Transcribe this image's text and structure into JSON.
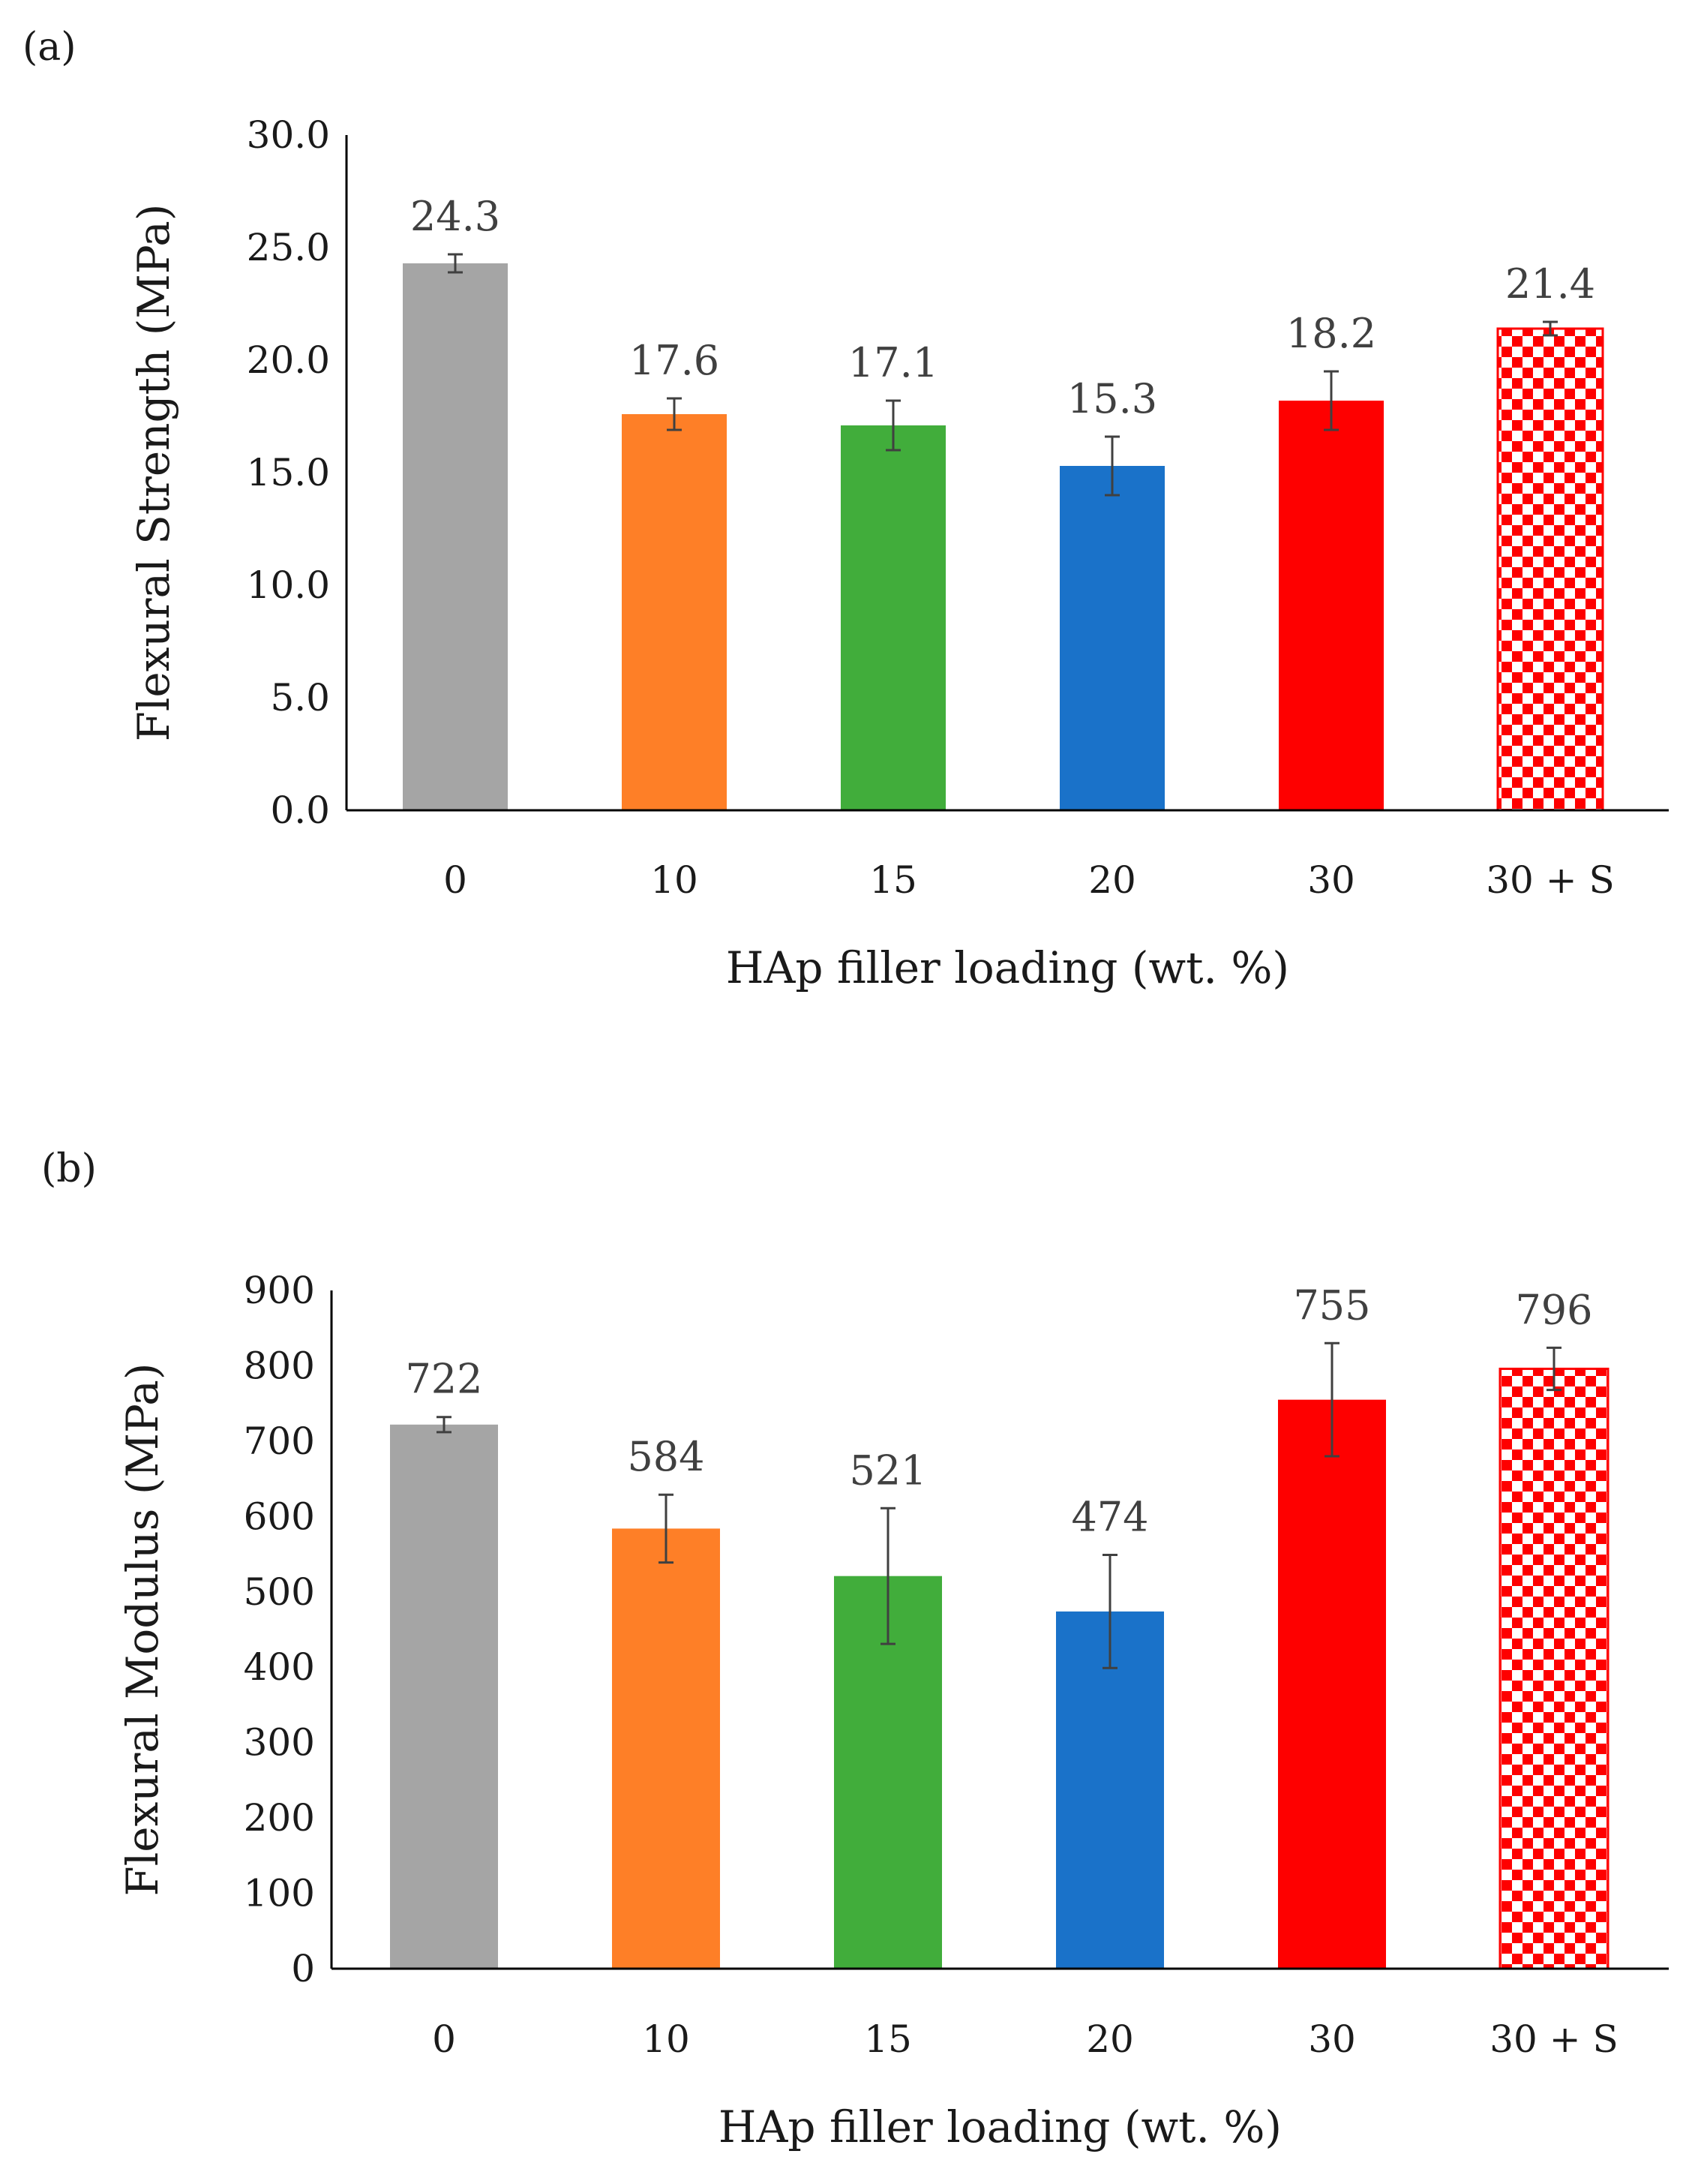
{
  "panels": [
    {
      "label": "(a)",
      "chart_data": {
        "type": "bar",
        "categories": [
          "0",
          "10",
          "15",
          "20",
          "30",
          "30 + S"
        ],
        "values": [
          24.3,
          17.6,
          17.1,
          15.3,
          18.2,
          21.4
        ],
        "value_labels": [
          "24.3",
          "17.6",
          "17.1",
          "15.3",
          "18.2",
          "21.4"
        ],
        "error": [
          0.4,
          0.7,
          1.1,
          1.3,
          1.3,
          0.3
        ],
        "colors": [
          "#a5a5a5",
          "#fe7f27",
          "#41ad3b",
          "#1a72c9",
          "#fe0000",
          "checker"
        ],
        "ylabel": "Flexural Strength (MPa)",
        "xlabel": "HAp filler loading (wt. %)",
        "ylim": [
          0,
          30
        ],
        "yticks": [
          0,
          5,
          10,
          15,
          20,
          25,
          30
        ],
        "ytick_labels": [
          "0.0",
          "5.0",
          "10.0",
          "15.0",
          "20.0",
          "25.0",
          "30.0"
        ],
        "grid": false,
        "legend": "none"
      }
    },
    {
      "label": "(b)",
      "chart_data": {
        "type": "bar",
        "categories": [
          "0",
          "10",
          "15",
          "20",
          "30",
          "30 + S"
        ],
        "values": [
          722,
          584,
          521,
          474,
          755,
          796
        ],
        "value_labels": [
          "722",
          "584",
          "521",
          "474",
          "755",
          "796"
        ],
        "error": [
          10,
          45,
          90,
          75,
          75,
          28
        ],
        "colors": [
          "#a5a5a5",
          "#fe7f27",
          "#41ad3b",
          "#1a72c9",
          "#fe0000",
          "checker"
        ],
        "ylabel": "Flexural Modulus (MPa)",
        "xlabel": "HAp filler loading (wt. %)",
        "ylim": [
          0,
          900
        ],
        "yticks": [
          0,
          100,
          200,
          300,
          400,
          500,
          600,
          700,
          800,
          900
        ],
        "ytick_labels": [
          "0",
          "100",
          "200",
          "300",
          "400",
          "500",
          "600",
          "700",
          "800",
          "900"
        ],
        "grid": false,
        "legend": "none"
      }
    }
  ]
}
